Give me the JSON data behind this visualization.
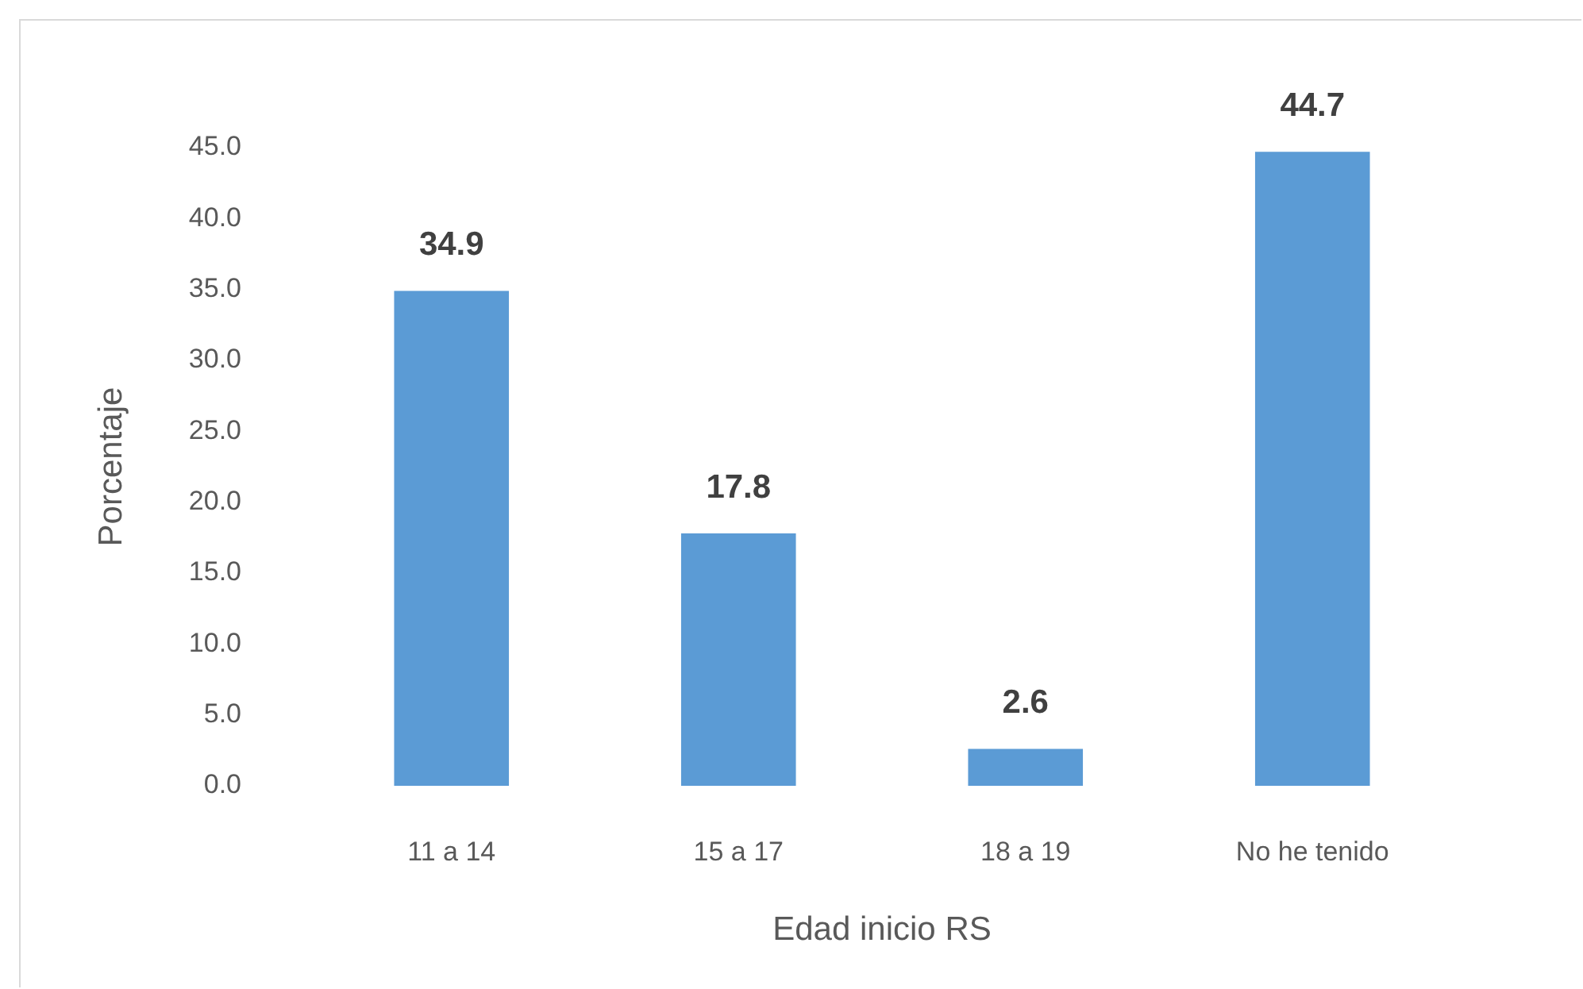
{
  "chart_data": {
    "type": "bar",
    "xlabel": "Edad inicio RS",
    "ylabel": "Porcentaje",
    "categories": [
      "11 a 14",
      "15 a 17",
      "18 a 19",
      "No he tenido"
    ],
    "values": [
      34.9,
      17.8,
      2.6,
      44.7
    ],
    "color": "#5b9bd5",
    "ylim": [
      0,
      45
    ],
    "yticks": [
      {
        "value": 0,
        "label": "0.0"
      },
      {
        "value": 5,
        "label": "5.0"
      },
      {
        "value": 10,
        "label": "10.0"
      },
      {
        "value": 15,
        "label": "15.0"
      },
      {
        "value": 20,
        "label": "20.0"
      },
      {
        "value": 25,
        "label": "25.0"
      },
      {
        "value": 30,
        "label": "30.0"
      },
      {
        "value": 35,
        "label": "35.0"
      },
      {
        "value": 40,
        "label": "40.0"
      },
      {
        "value": 45,
        "label": "45.0"
      }
    ],
    "data_labels": true,
    "grid": false,
    "legend": false
  }
}
